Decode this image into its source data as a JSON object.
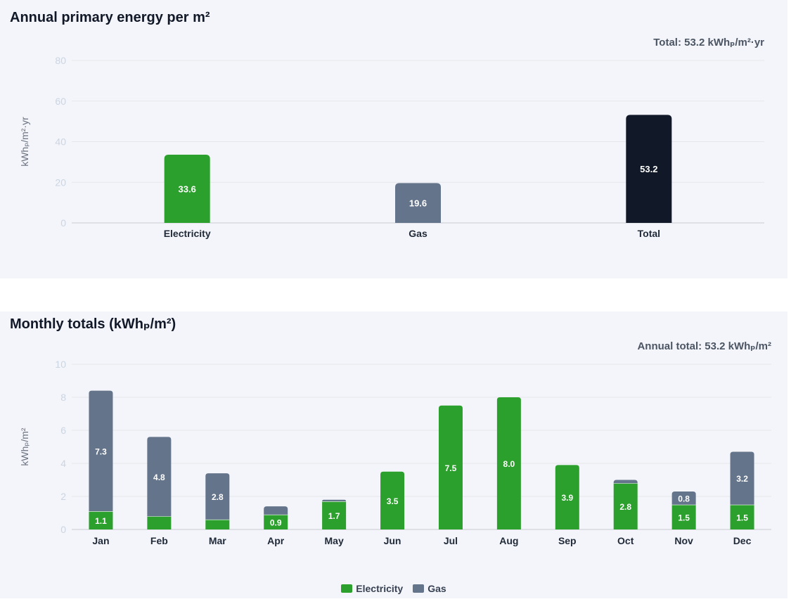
{
  "annual": {
    "title": "Annual primary energy per m²",
    "total_label": "Total: 53.2 kWhₚ/m²·yr"
  },
  "monthly": {
    "title": "Monthly totals (kWhₚ/m²)",
    "total_label": "Annual total: 53.2 kWhₚ/m²"
  },
  "colors": {
    "electricity": "#2ca02c",
    "gas": "#64748b",
    "total": "#111827",
    "grid": "#e5e7eb",
    "tick": "#cbd5e1"
  },
  "chart_data": [
    {
      "type": "bar",
      "title": "Annual primary energy per m²",
      "ylabel": "kWhₚ/m²·yr",
      "xlabel": "",
      "ylim": [
        0,
        80
      ],
      "yticks": [
        0,
        20,
        40,
        60,
        80
      ],
      "grid": true,
      "categories": [
        "Electricity",
        "Gas",
        "Total"
      ],
      "values": [
        33.6,
        19.6,
        53.2
      ],
      "value_labels": [
        "33.6",
        "19.6",
        "53.2"
      ]
    },
    {
      "type": "bar",
      "stacked": true,
      "title": "Monthly totals (kWhₚ/m²)",
      "ylabel": "kWhₚ/m²",
      "xlabel": "",
      "ylim": [
        0,
        10
      ],
      "yticks": [
        0,
        2,
        4,
        6,
        8,
        10
      ],
      "grid": true,
      "legend": "bottom",
      "categories": [
        "Jan",
        "Feb",
        "Mar",
        "Apr",
        "May",
        "Jun",
        "Jul",
        "Aug",
        "Sep",
        "Oct",
        "Nov",
        "Dec"
      ],
      "series": [
        {
          "name": "Electricity",
          "values": [
            1.1,
            0.8,
            0.6,
            0.9,
            1.7,
            3.5,
            7.5,
            8.0,
            3.9,
            2.8,
            1.5,
            1.5
          ],
          "labels": [
            "1.1",
            "",
            "",
            "0.9",
            "1.7",
            "3.5",
            "7.5",
            "8.0",
            "3.9",
            "2.8",
            "1.5",
            "1.5"
          ]
        },
        {
          "name": "Gas",
          "values": [
            7.3,
            4.8,
            2.8,
            0.5,
            0.1,
            0,
            0,
            0,
            0,
            0.2,
            0.8,
            3.2
          ],
          "labels": [
            "7.3",
            "4.8",
            "2.8",
            "",
            "",
            "",
            "",
            "",
            "",
            "",
            "0.8",
            "3.2"
          ]
        }
      ]
    }
  ]
}
